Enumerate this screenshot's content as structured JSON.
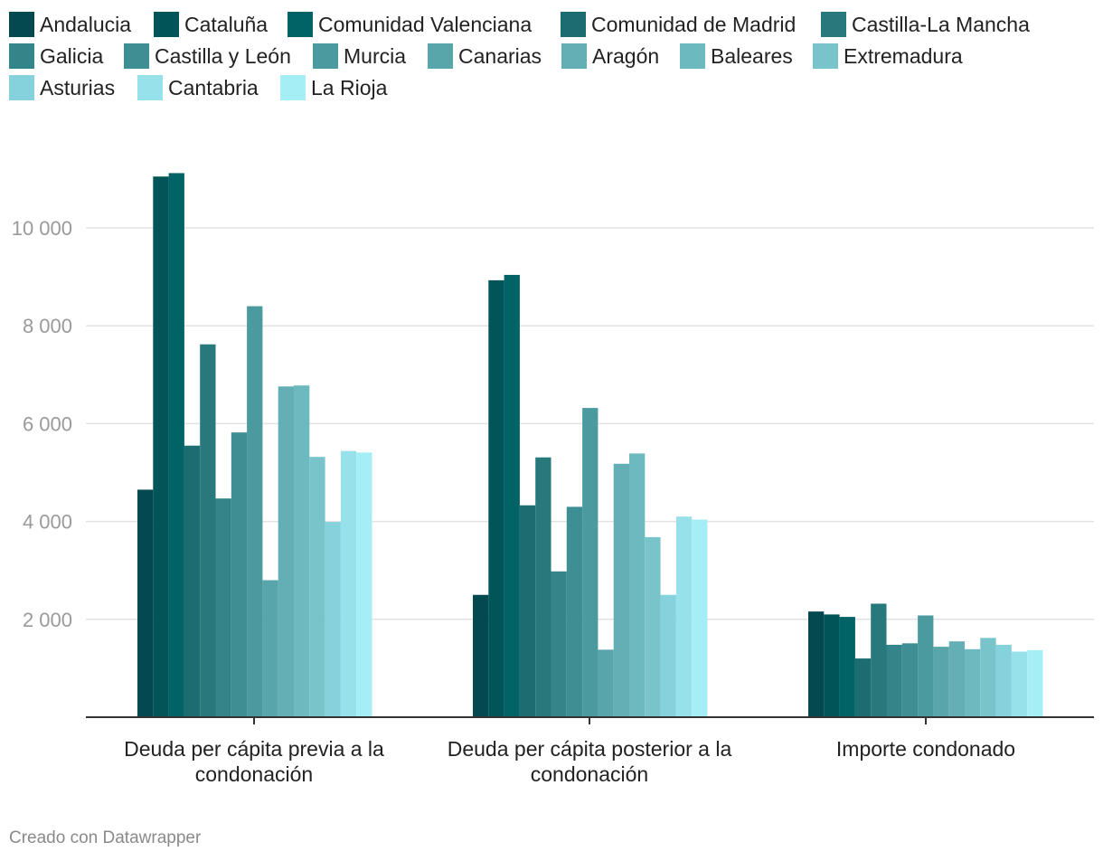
{
  "chart_data": {
    "type": "bar",
    "categories": [
      "Deuda per cápita previa a la condonación",
      "Deuda per cápita posterior a la condonación",
      "Importe condonado"
    ],
    "category_lines": [
      [
        "Deuda per cápita previa a la",
        "condonación"
      ],
      [
        "Deuda per cápita posterior a la",
        "condonación"
      ],
      [
        "Importe condonado"
      ]
    ],
    "ylim": [
      0,
      11500
    ],
    "yticks": [
      2000,
      4000,
      6000,
      8000,
      10000
    ],
    "ytick_labels": [
      "2 000",
      "4 000",
      "6 000",
      "8 000",
      "10 000"
    ],
    "grid": true,
    "legend_position": "top",
    "series": [
      {
        "name": "Andalucia",
        "color": "#03494f",
        "values": [
          4650,
          2500,
          2160
        ]
      },
      {
        "name": "Cataluña",
        "color": "#015458",
        "values": [
          11050,
          8930,
          2100
        ]
      },
      {
        "name": "Comunidad Valenciana",
        "color": "#026366",
        "values": [
          11120,
          9040,
          2050
        ]
      },
      {
        "name": "Comunidad de Madrid",
        "color": "#1b6d72",
        "values": [
          5550,
          4330,
          1200
        ]
      },
      {
        "name": "Castilla-La Mancha",
        "color": "#27797b",
        "values": [
          7620,
          5310,
          2320
        ]
      },
      {
        "name": "Galicia",
        "color": "#33858a",
        "values": [
          4470,
          2980,
          1480
        ]
      },
      {
        "name": "Castilla y León",
        "color": "#3e8f94",
        "values": [
          5820,
          4300,
          1510
        ]
      },
      {
        "name": "Murcia",
        "color": "#4b9aa0",
        "values": [
          8400,
          6320,
          2080
        ]
      },
      {
        "name": "Canarias",
        "color": "#58a5aa",
        "values": [
          2800,
          1380,
          1440
        ]
      },
      {
        "name": "Aragón",
        "color": "#63afb5",
        "values": [
          6760,
          5180,
          1550
        ]
      },
      {
        "name": "Baleares",
        "color": "#6cb9bf",
        "values": [
          6780,
          5390,
          1390
        ]
      },
      {
        "name": "Extremadura",
        "color": "#79c4cb",
        "values": [
          5320,
          3680,
          1620
        ]
      },
      {
        "name": "Asturias",
        "color": "#85d2dc",
        "values": [
          3990,
          2500,
          1480
        ]
      },
      {
        "name": "Cantabria",
        "color": "#97e1ea",
        "values": [
          5440,
          4100,
          1340
        ]
      },
      {
        "name": "La Rioja",
        "color": "#a6eef5",
        "values": [
          5410,
          4040,
          1370
        ]
      }
    ]
  },
  "footer": {
    "credit": "Creado con Datawrapper"
  }
}
